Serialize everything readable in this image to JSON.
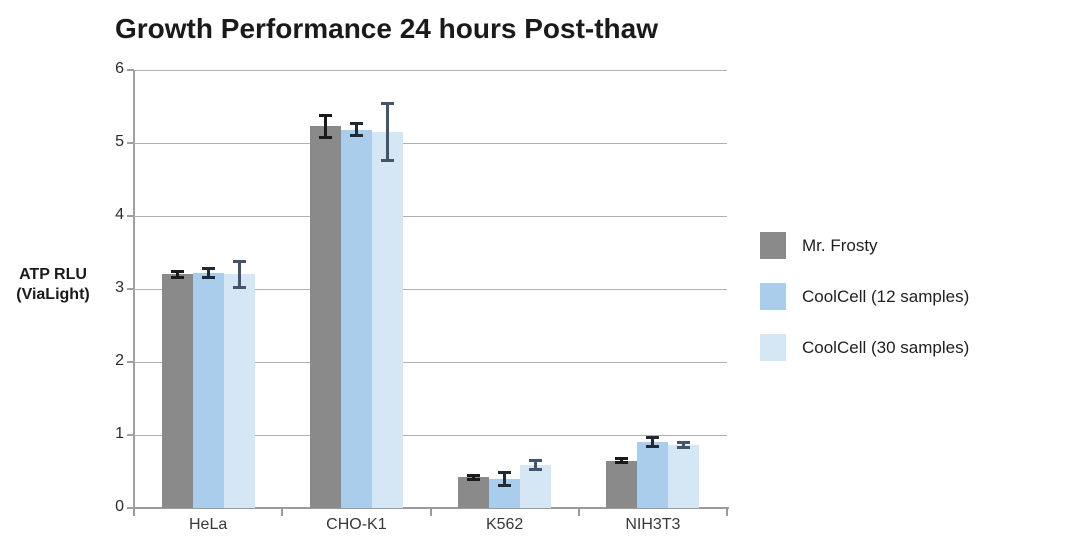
{
  "chart_data": {
    "type": "bar",
    "title": "Growth Performance 24 hours Post-thaw",
    "ylabel_lines": [
      "ATP RLU",
      "(ViaLight)"
    ],
    "xlabel": "",
    "categories": [
      "HeLa",
      "CHO-K1",
      "K562",
      "NIH3T3"
    ],
    "series": [
      {
        "name": "Mr. Frosty",
        "color": "#8a8a8a",
        "error_color": "#1a1a1a",
        "values": [
          3.2,
          5.23,
          0.42,
          0.65
        ],
        "errors": [
          0.05,
          0.16,
          0.03,
          0.03
        ]
      },
      {
        "name": "CoolCell (12 samples)",
        "color": "#a9cdea",
        "error_color": "#1f2a36",
        "values": [
          3.22,
          5.18,
          0.4,
          0.9
        ],
        "errors": [
          0.07,
          0.09,
          0.1,
          0.07
        ]
      },
      {
        "name": "CoolCell (30 samples)",
        "color": "#d5e6f5",
        "error_color": "#44546a",
        "values": [
          3.2,
          5.15,
          0.59,
          0.86
        ],
        "errors": [
          0.19,
          0.4,
          0.07,
          0.04
        ]
      }
    ],
    "ylim": [
      0,
      6
    ],
    "yticks": [
      0,
      1,
      2,
      3,
      4,
      5,
      6
    ],
    "grid": true,
    "legend_position": "right",
    "colors": {
      "gridline": "#b0b0b0",
      "axis": "#9a9a9a",
      "title_text": "#1a1a1a",
      "tick_text": "#2b2b2b"
    }
  }
}
